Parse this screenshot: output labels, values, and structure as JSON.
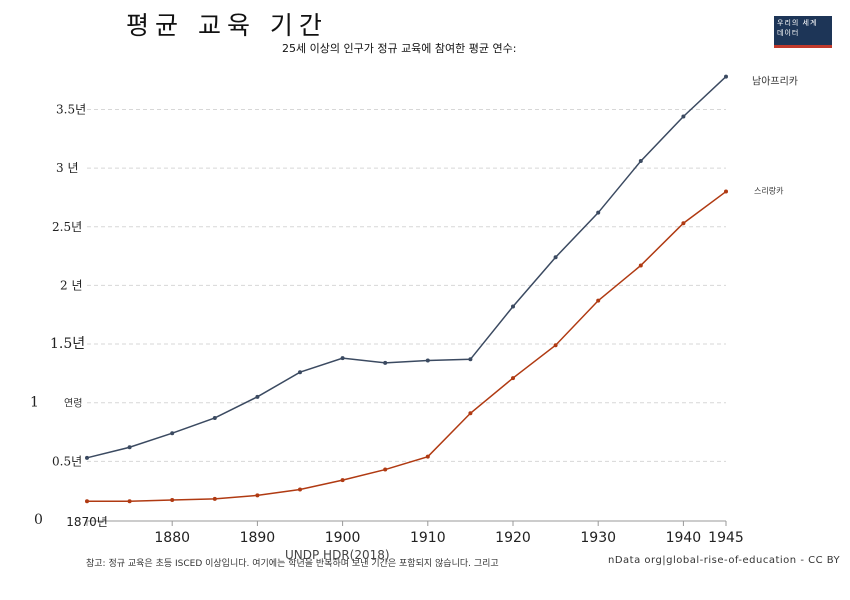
{
  "header": {
    "title": "평균 교육 기간",
    "subtitle": "25세 이상의 인구가 정규 교육에 참여한 평균 연수:",
    "logo_line1": "우리의 세계",
    "logo_line2": "데이터"
  },
  "footer": {
    "note": "참고: 정규 교육은 초등 ISCED 이상입니다. 여기에는 학년을 반복하며 보낸 기간은 포함되지 않습니다. 그리고",
    "source": "UNDP HDR(2018)",
    "license": "nData org|global-rise-of-education - CC BY"
  },
  "chart_data": {
    "type": "line",
    "x": [
      1870,
      1875,
      1880,
      1885,
      1890,
      1895,
      1900,
      1905,
      1910,
      1915,
      1920,
      1925,
      1930,
      1935,
      1940,
      1945
    ],
    "x_tick_labels": [
      "1870년",
      "1880",
      "1890",
      "1900",
      "1910",
      "1920",
      "1930",
      "1940",
      "1945"
    ],
    "x_tick_values": [
      1870,
      1880,
      1890,
      1900,
      1910,
      1920,
      1930,
      1940,
      1945
    ],
    "y_tick_labels": [
      "0",
      "0.5년",
      "1",
      "1.5년",
      "2 년",
      "2.5년",
      "3 년",
      "3.5년"
    ],
    "y_tick_values": [
      0,
      0.5,
      1,
      1.5,
      2,
      2.5,
      3,
      3.5
    ],
    "y_axis_annotation": "연령",
    "xlim": [
      1870,
      1945
    ],
    "ylim": [
      0,
      3.8
    ],
    "grid": "horizontal dashed",
    "series": [
      {
        "name": "남아프리카",
        "color": "#3b4a61",
        "values": [
          0.53,
          0.62,
          0.74,
          0.87,
          1.05,
          1.26,
          1.38,
          1.34,
          1.36,
          1.37,
          1.82,
          2.24,
          2.62,
          3.06,
          3.44,
          3.78
        ]
      },
      {
        "name": "스리랑카",
        "color": "#b03a12",
        "values": [
          0.16,
          0.16,
          0.17,
          0.18,
          0.21,
          0.26,
          0.34,
          0.43,
          0.54,
          0.91,
          1.21,
          1.49,
          1.87,
          2.17,
          2.53,
          2.8
        ]
      }
    ]
  }
}
